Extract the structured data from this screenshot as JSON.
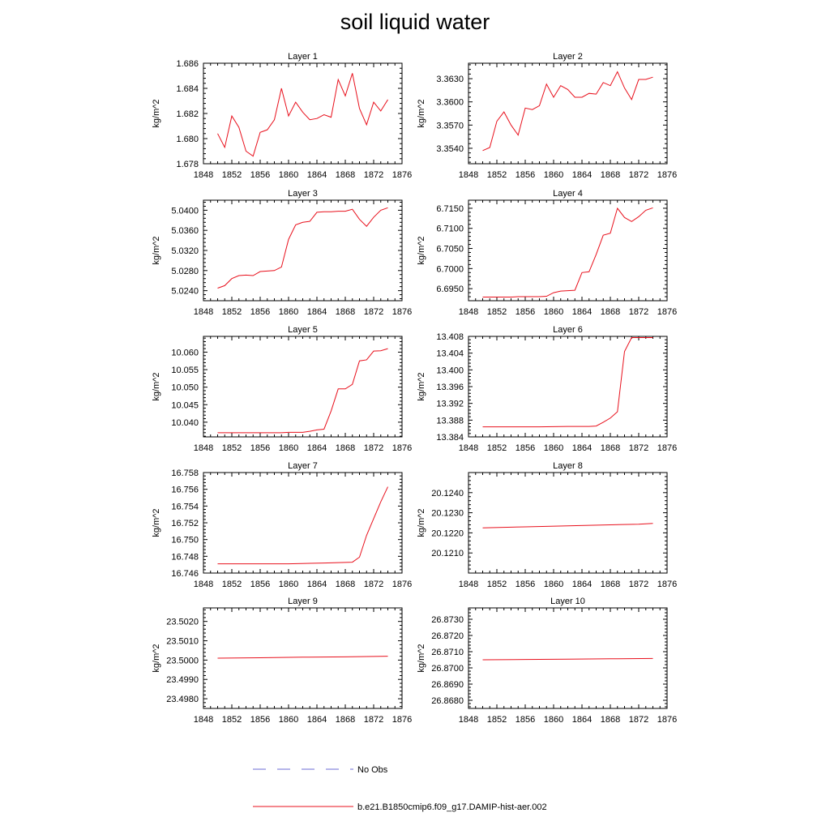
{
  "figure": {
    "title": "soil liquid water"
  },
  "legend": {
    "entries": [
      {
        "label": "No Obs",
        "color": "#6b6bd6",
        "style": "dashed"
      },
      {
        "label": "b.e21.B1850cmip6.f09_g17.DAMIP-hist-aer.002",
        "color": "#e8101c",
        "style": "solid"
      }
    ]
  },
  "chart_data": [
    {
      "type": "line",
      "title": "Layer 1",
      "ylabel": "kg/m^2",
      "xlim": [
        1848,
        1876
      ],
      "xticks": [
        1848,
        1852,
        1856,
        1860,
        1864,
        1868,
        1872,
        1876
      ],
      "ylim": [
        1.678,
        1.686
      ],
      "yticks": [
        "1.678",
        "1.680",
        "1.682",
        "1.684",
        "1.686"
      ],
      "series": [
        {
          "color": "#e8101c",
          "x": [
            1850,
            1851,
            1852,
            1853,
            1854,
            1855,
            1856,
            1857,
            1858,
            1859,
            1860,
            1861,
            1862,
            1863,
            1864,
            1865,
            1866,
            1867,
            1868,
            1869,
            1870,
            1871,
            1872,
            1873,
            1874
          ],
          "y": [
            1.6804,
            1.6793,
            1.6818,
            1.6809,
            1.679,
            1.6786,
            1.6805,
            1.6807,
            1.6815,
            1.684,
            1.6818,
            1.6829,
            1.6821,
            1.6815,
            1.6816,
            1.6819,
            1.6817,
            1.6847,
            1.6834,
            1.6852,
            1.6824,
            1.6811,
            1.6829,
            1.6822,
            1.6831
          ]
        }
      ]
    },
    {
      "type": "line",
      "title": "Layer 2",
      "ylabel": "kg/m^2",
      "xlim": [
        1848,
        1876
      ],
      "xticks": [
        1848,
        1852,
        1856,
        1860,
        1864,
        1868,
        1872,
        1876
      ],
      "ylim": [
        3.352,
        3.365
      ],
      "yticks": [
        "3.3540",
        "3.3570",
        "3.3600",
        "3.3630"
      ],
      "series": [
        {
          "color": "#e8101c",
          "x": [
            1850,
            1851,
            1852,
            1853,
            1854,
            1855,
            1856,
            1857,
            1858,
            1859,
            1860,
            1861,
            1862,
            1863,
            1864,
            1865,
            1866,
            1867,
            1868,
            1869,
            1870,
            1871,
            1872,
            1873,
            1874
          ],
          "y": [
            3.3537,
            3.3541,
            3.3575,
            3.3587,
            3.357,
            3.3557,
            3.3592,
            3.359,
            3.3595,
            3.3623,
            3.3606,
            3.3621,
            3.3616,
            3.3606,
            3.3606,
            3.3611,
            3.361,
            3.3625,
            3.3621,
            3.3639,
            3.3618,
            3.3603,
            3.3629,
            3.3629,
            3.3632
          ]
        }
      ]
    },
    {
      "type": "line",
      "title": "Layer 3",
      "ylabel": "kg/m^2",
      "xlim": [
        1848,
        1876
      ],
      "xticks": [
        1848,
        1852,
        1856,
        1860,
        1864,
        1868,
        1872,
        1876
      ],
      "ylim": [
        5.022,
        5.042
      ],
      "yticks": [
        "5.0240",
        "5.0280",
        "5.0320",
        "5.0360",
        "5.0400"
      ],
      "series": [
        {
          "color": "#e8101c",
          "x": [
            1850,
            1851,
            1852,
            1853,
            1854,
            1855,
            1856,
            1857,
            1858,
            1859,
            1860,
            1861,
            1862,
            1863,
            1864,
            1865,
            1866,
            1867,
            1868,
            1869,
            1870,
            1871,
            1872,
            1873,
            1874
          ],
          "y": [
            5.0245,
            5.025,
            5.0264,
            5.027,
            5.0271,
            5.027,
            5.0278,
            5.0279,
            5.028,
            5.0287,
            5.0342,
            5.0371,
            5.0376,
            5.0378,
            5.0396,
            5.0397,
            5.0397,
            5.0398,
            5.0398,
            5.0402,
            5.0382,
            5.0368,
            5.0386,
            5.04,
            5.0405
          ]
        }
      ]
    },
    {
      "type": "line",
      "title": "Layer 4",
      "ylabel": "kg/m^2",
      "xlim": [
        1848,
        1876
      ],
      "xticks": [
        1848,
        1852,
        1856,
        1860,
        1864,
        1868,
        1872,
        1876
      ],
      "ylim": [
        6.692,
        6.717
      ],
      "yticks": [
        "6.6950",
        "6.7000",
        "6.7050",
        "6.7100",
        "6.7150"
      ],
      "series": [
        {
          "color": "#e8101c",
          "x": [
            1850,
            1851,
            1852,
            1853,
            1854,
            1855,
            1856,
            1857,
            1858,
            1859,
            1860,
            1861,
            1862,
            1863,
            1864,
            1865,
            1866,
            1867,
            1868,
            1869,
            1870,
            1871,
            1872,
            1873,
            1874
          ],
          "y": [
            6.6929,
            6.6929,
            6.6929,
            6.6929,
            6.6929,
            6.693,
            6.693,
            6.693,
            6.693,
            6.6931,
            6.694,
            6.6944,
            6.6945,
            6.6946,
            6.699,
            6.6992,
            6.7035,
            6.7083,
            6.7088,
            6.715,
            6.7127,
            6.7117,
            6.7129,
            6.7145,
            6.7151
          ]
        }
      ]
    },
    {
      "type": "line",
      "title": "Layer 5",
      "ylabel": "kg/m^2",
      "xlim": [
        1848,
        1876
      ],
      "xticks": [
        1848,
        1852,
        1856,
        1860,
        1864,
        1868,
        1872,
        1876
      ],
      "ylim": [
        10.0358,
        10.0645
      ],
      "yticks": [
        "10.040",
        "10.045",
        "10.050",
        "10.055",
        "10.060"
      ],
      "series": [
        {
          "color": "#e8101c",
          "x": [
            1850,
            1851,
            1852,
            1853,
            1854,
            1855,
            1856,
            1857,
            1858,
            1859,
            1860,
            1861,
            1862,
            1863,
            1864,
            1865,
            1866,
            1867,
            1868,
            1869,
            1870,
            1871,
            1872,
            1873,
            1874
          ],
          "y": [
            10.037,
            10.037,
            10.037,
            10.037,
            10.037,
            10.037,
            10.037,
            10.037,
            10.037,
            10.037,
            10.0371,
            10.0371,
            10.0371,
            10.0374,
            10.0378,
            10.038,
            10.0432,
            10.0495,
            10.0495,
            10.0508,
            10.0575,
            10.0578,
            10.0603,
            10.0604,
            10.061
          ]
        }
      ]
    },
    {
      "type": "line",
      "title": "Layer 6",
      "ylabel": "kg/m^2",
      "xlim": [
        1848,
        1876
      ],
      "xticks": [
        1848,
        1852,
        1856,
        1860,
        1864,
        1868,
        1872,
        1876
      ],
      "ylim": [
        13.384,
        13.408
      ],
      "yticks": [
        "13.384",
        "13.388",
        "13.392",
        "13.396",
        "13.400",
        "13.404",
        "13.408"
      ],
      "series": [
        {
          "color": "#e8101c",
          "x": [
            1850,
            1854,
            1858,
            1862,
            1864,
            1865,
            1866,
            1867,
            1868,
            1869,
            1870,
            1871,
            1872,
            1873,
            1874
          ],
          "y": [
            13.3864,
            13.3864,
            13.3864,
            13.3865,
            13.3865,
            13.3865,
            13.3866,
            13.3875,
            13.3885,
            13.39,
            13.4044,
            13.4077,
            13.4077,
            13.4077,
            13.4077
          ]
        }
      ]
    },
    {
      "type": "line",
      "title": "Layer 7",
      "ylabel": "kg/m^2",
      "xlim": [
        1848,
        1876
      ],
      "xticks": [
        1848,
        1852,
        1856,
        1860,
        1864,
        1868,
        1872,
        1876
      ],
      "ylim": [
        16.746,
        16.758
      ],
      "yticks": [
        "16.746",
        "16.748",
        "16.750",
        "16.752",
        "16.754",
        "16.756",
        "16.758"
      ],
      "series": [
        {
          "color": "#e8101c",
          "x": [
            1850,
            1855,
            1860,
            1865,
            1869,
            1870,
            1871,
            1872,
            1873,
            1874
          ],
          "y": [
            16.7471,
            16.7471,
            16.7471,
            16.7472,
            16.7473,
            16.7479,
            16.7505,
            16.7525,
            16.7545,
            16.7563
          ]
        }
      ]
    },
    {
      "type": "line",
      "title": "Layer 8",
      "ylabel": "kg/m^2",
      "xlim": [
        1848,
        1876
      ],
      "xticks": [
        1848,
        1852,
        1856,
        1860,
        1864,
        1868,
        1872,
        1876
      ],
      "ylim": [
        20.12,
        20.125
      ],
      "yticks": [
        "20.1210",
        "20.1220",
        "20.1230",
        "20.1240"
      ],
      "series": [
        {
          "color": "#e8101c",
          "x": [
            1850,
            1856,
            1862,
            1868,
            1872,
            1874
          ],
          "y": [
            20.12225,
            20.1223,
            20.12235,
            20.1224,
            20.12243,
            20.12247
          ]
        }
      ]
    },
    {
      "type": "line",
      "title": "Layer 9",
      "ylabel": "kg/m^2",
      "xlim": [
        1848,
        1876
      ],
      "xticks": [
        1848,
        1852,
        1856,
        1860,
        1864,
        1868,
        1872,
        1876
      ],
      "ylim": [
        23.4975,
        23.5027
      ],
      "yticks": [
        "23.4980",
        "23.4990",
        "23.5000",
        "23.5010",
        "23.5020"
      ],
      "series": [
        {
          "color": "#e8101c",
          "x": [
            1850,
            1856,
            1862,
            1868,
            1874
          ],
          "y": [
            23.5001,
            23.50012,
            23.50015,
            23.50017,
            23.5002
          ]
        }
      ]
    },
    {
      "type": "line",
      "title": "Layer 10",
      "ylabel": "kg/m^2",
      "xlim": [
        1848,
        1876
      ],
      "xticks": [
        1848,
        1852,
        1856,
        1860,
        1864,
        1868,
        1872,
        1876
      ],
      "ylim": [
        26.8675,
        26.8737
      ],
      "yticks": [
        "26.8680",
        "26.8690",
        "26.8700",
        "26.8710",
        "26.8720",
        "26.8730"
      ],
      "series": [
        {
          "color": "#e8101c",
          "x": [
            1850,
            1856,
            1862,
            1868,
            1874
          ],
          "y": [
            26.8705,
            26.87052,
            26.87054,
            26.87056,
            26.87058
          ]
        }
      ]
    }
  ]
}
